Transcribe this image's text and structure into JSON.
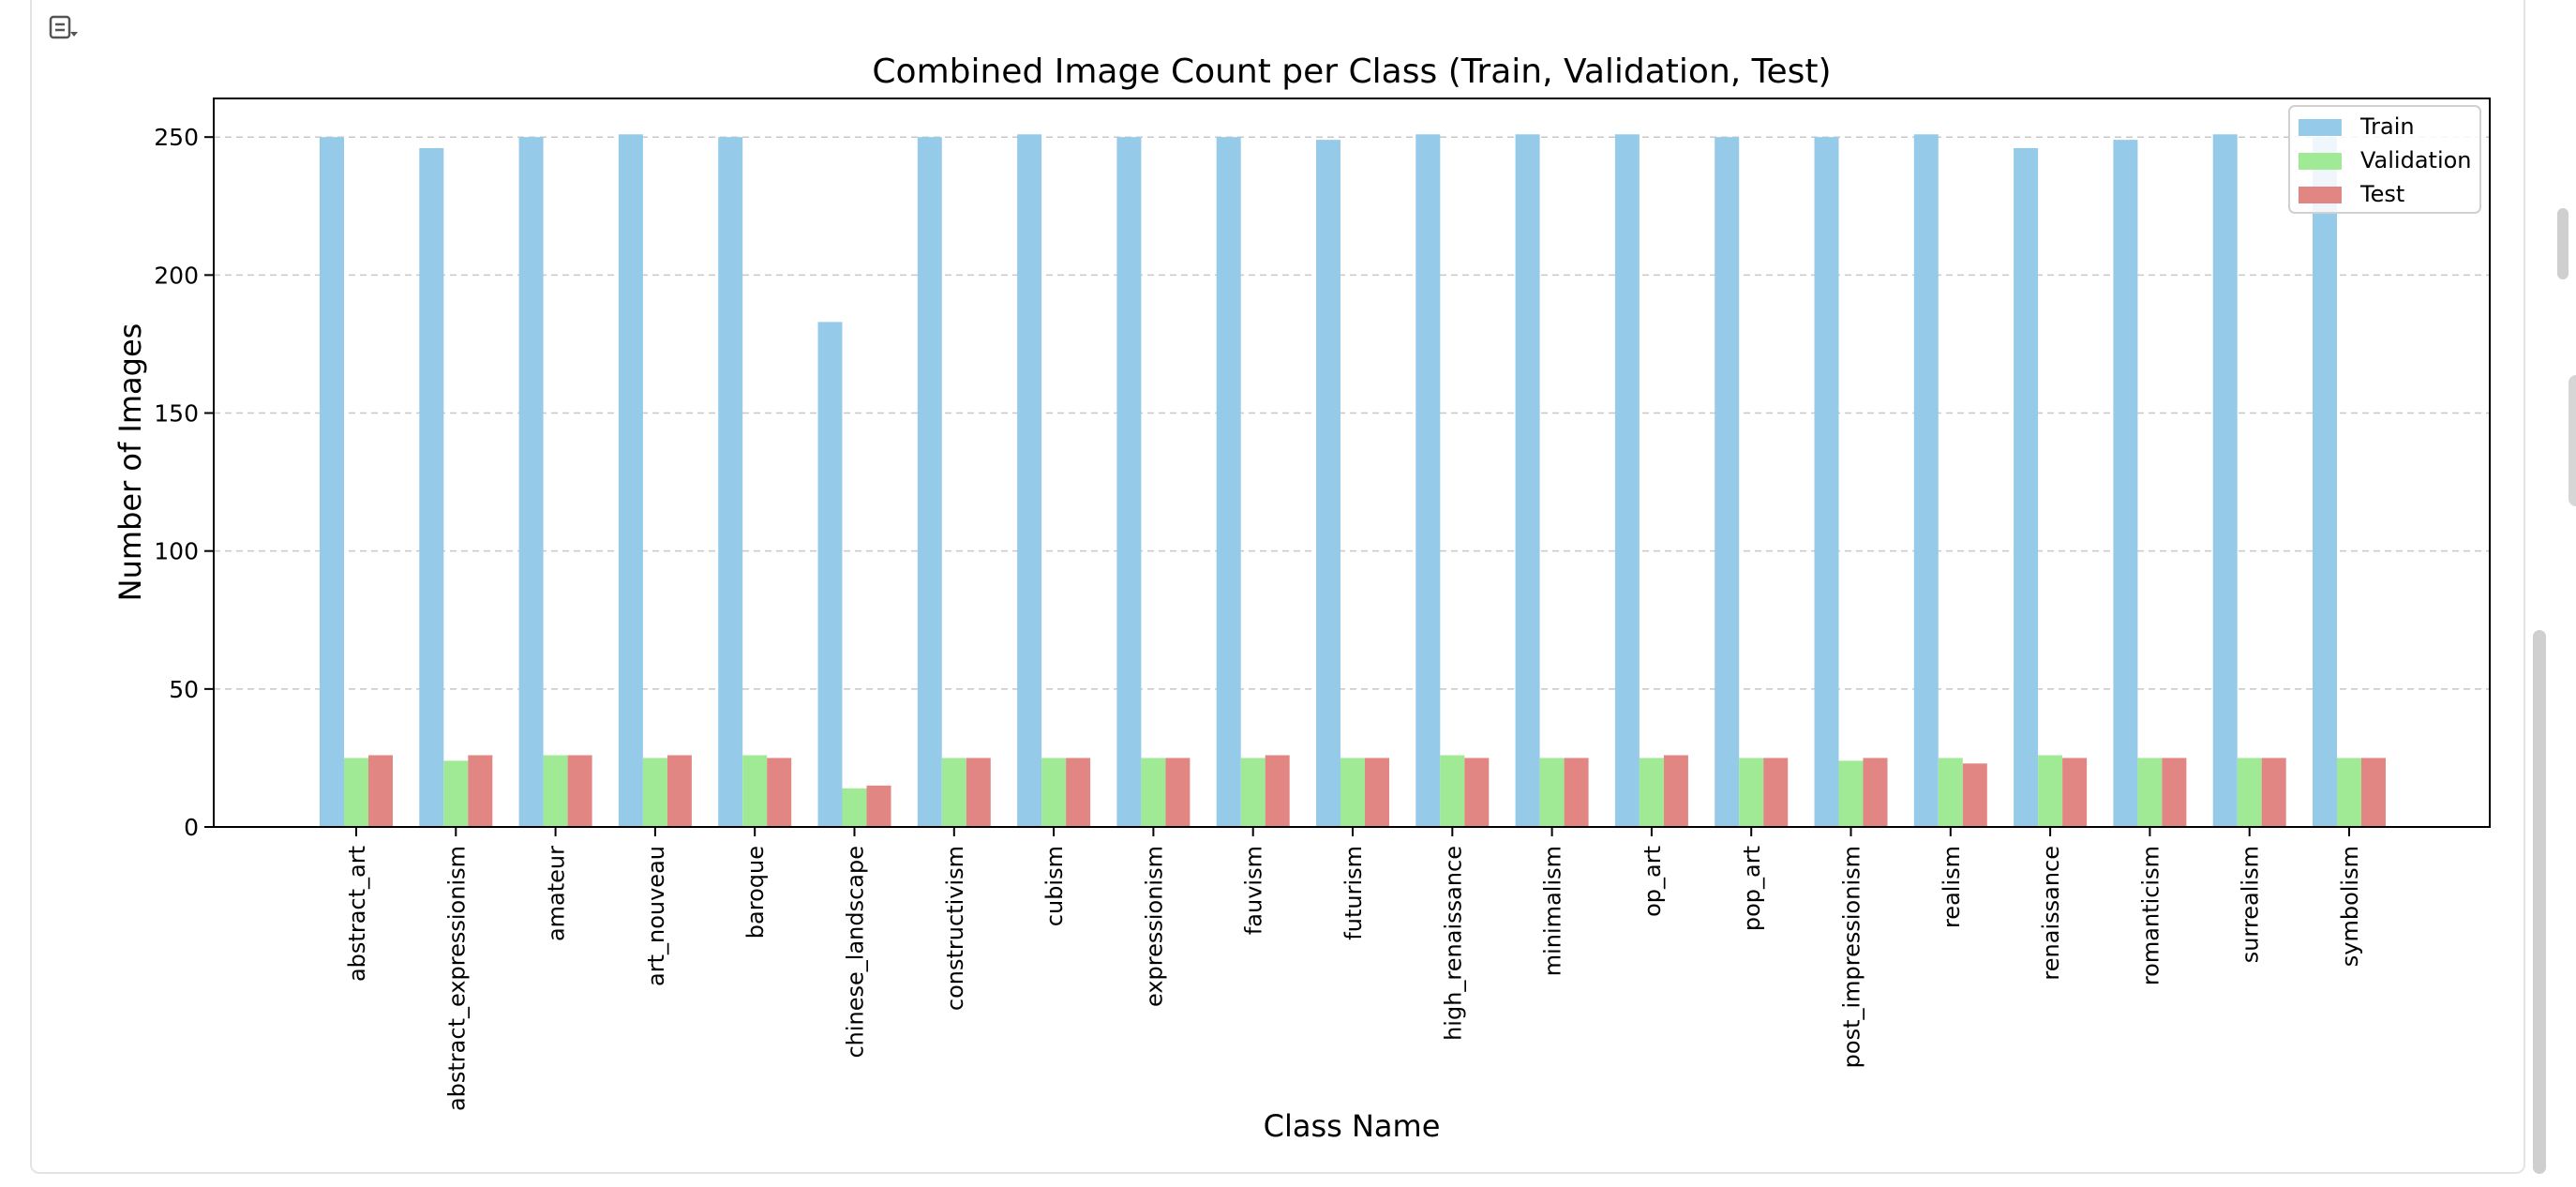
{
  "toolbar": {
    "toggle_icon": "output-collapse-icon"
  },
  "colors": {
    "train": "#95cbe8",
    "validation": "#a1ea95",
    "test": "#e28683",
    "grid": "#c8c8c8"
  },
  "chart_data": {
    "type": "bar",
    "title": "Combined Image Count per Class (Train, Validation, Test)",
    "xlabel": "Class Name",
    "ylabel": "Number of Images",
    "ylim": [
      0,
      264
    ],
    "yticks": [
      0,
      50,
      100,
      150,
      200,
      250
    ],
    "grid": "y-dashed",
    "legend_position": "top-right",
    "categories": [
      "abstract_art",
      "abstract_expressionism",
      "amateur",
      "art_nouveau",
      "baroque",
      "chinese_landscape",
      "constructivism",
      "cubism",
      "expressionism",
      "fauvism",
      "futurism",
      "high_renaissance",
      "minimalism",
      "op_art",
      "pop_art",
      "post_impressionism",
      "realism",
      "renaissance",
      "romanticism",
      "surrealism",
      "symbolism"
    ],
    "series": [
      {
        "name": "Train",
        "values": [
          250,
          246,
          250,
          251,
          250,
          183,
          250,
          251,
          250,
          250,
          249,
          251,
          251,
          251,
          250,
          250,
          251,
          246,
          249,
          251,
          250
        ]
      },
      {
        "name": "Validation",
        "values": [
          25,
          24,
          26,
          25,
          26,
          14,
          25,
          25,
          25,
          25,
          25,
          26,
          25,
          25,
          25,
          24,
          25,
          26,
          25,
          25,
          25
        ]
      },
      {
        "name": "Test",
        "values": [
          26,
          26,
          26,
          26,
          25,
          15,
          25,
          25,
          25,
          26,
          25,
          25,
          25,
          26,
          25,
          25,
          23,
          25,
          25,
          25,
          25
        ]
      }
    ]
  }
}
